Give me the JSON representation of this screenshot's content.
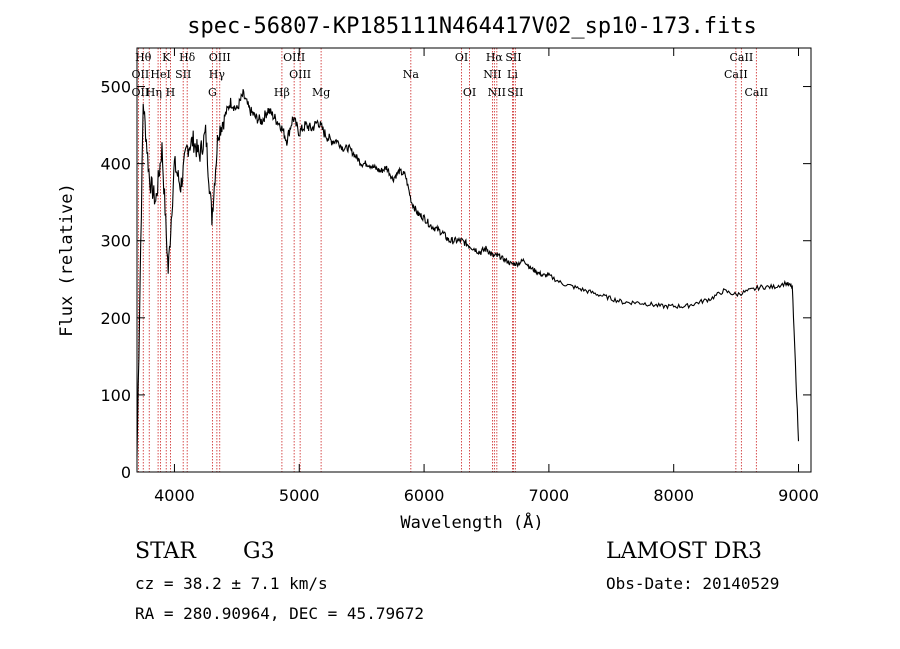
{
  "chart_data": {
    "type": "line",
    "title": "spec-56807-KP185111N464417V02_sp10-173.fits",
    "xlabel": "Wavelength (Å)",
    "ylabel": "Flux (relative)",
    "xlim": [
      3700,
      9100
    ],
    "ylim": [
      0,
      550
    ],
    "x_ticks": [
      "4000",
      "5000",
      "6000",
      "7000",
      "8000",
      "9000"
    ],
    "y_ticks": [
      "0",
      "100",
      "200",
      "300",
      "400",
      "500"
    ],
    "grid": false,
    "series": [
      {
        "x": [
          3700,
          3750,
          3800,
          3850,
          3900,
          3950,
          4000,
          4050,
          4100,
          4150,
          4200,
          4250,
          4300,
          4350,
          4400,
          4450,
          4500,
          4550,
          4600,
          4650,
          4700,
          4750,
          4800,
          4850,
          4900,
          4950,
          5000,
          5050,
          5100,
          5150,
          5200,
          5250,
          5300,
          5350,
          5400,
          5450,
          5500,
          5550,
          5600,
          5650,
          5700,
          5750,
          5800,
          5850,
          5900,
          5950,
          6000,
          6050,
          6100,
          6150,
          6200,
          6250,
          6300,
          6350,
          6400,
          6450,
          6500,
          6550,
          6600,
          6650,
          6700,
          6750,
          6800,
          6850,
          6900,
          6950,
          7000,
          7100,
          7200,
          7300,
          7400,
          7500,
          7600,
          7700,
          7800,
          7900,
          8000,
          8100,
          8200,
          8300,
          8400,
          8500,
          8600,
          8700,
          8800,
          8900,
          8950,
          9000
        ],
        "y": [
          20,
          480,
          380,
          350,
          420,
          260,
          400,
          370,
          420,
          430,
          410,
          440,
          330,
          440,
          460,
          480,
          470,
          490,
          470,
          460,
          455,
          470,
          460,
          450,
          430,
          460,
          440,
          450,
          445,
          455,
          440,
          430,
          430,
          420,
          420,
          410,
          400,
          400,
          395,
          390,
          395,
          380,
          390,
          385,
          350,
          335,
          330,
          320,
          315,
          310,
          300,
          300,
          300,
          295,
          290,
          285,
          290,
          280,
          280,
          275,
          270,
          270,
          275,
          265,
          260,
          255,
          255,
          245,
          240,
          235,
          230,
          225,
          220,
          220,
          218,
          215,
          215,
          215,
          220,
          225,
          235,
          230,
          235,
          240,
          240,
          245,
          240,
          40
        ]
      }
    ],
    "lines": [
      {
        "x": 3712,
        "labels": [
          "Hθ",
          "OII"
        ]
      },
      {
        "x": 3750,
        "labels": [
          "Hη"
        ]
      },
      {
        "x": 3798,
        "labels": [
          "Hη"
        ]
      },
      {
        "x": 3869,
        "labels": [
          "NeIII"
        ]
      },
      {
        "x": 3889,
        "labels": [
          "HeI"
        ]
      },
      {
        "x": 3934,
        "labels": [
          "K"
        ]
      },
      {
        "x": 3968,
        "labels": [
          "H"
        ]
      },
      {
        "x": 4070,
        "labels": [
          "SII"
        ]
      },
      {
        "x": 4102,
        "labels": [
          "Hδ"
        ]
      },
      {
        "x": 4304,
        "labels": [
          "G"
        ]
      },
      {
        "x": 4340,
        "labels": [
          "Hγ"
        ]
      },
      {
        "x": 4363,
        "labels": [
          "OIII"
        ]
      },
      {
        "x": 4861,
        "labels": [
          "Hβ"
        ]
      },
      {
        "x": 4959,
        "labels": [
          "OIII"
        ]
      },
      {
        "x": 5007,
        "labels": [
          "OIII"
        ]
      },
      {
        "x": 5175,
        "labels": [
          "Mg"
        ]
      },
      {
        "x": 5894,
        "labels": [
          "Na"
        ]
      },
      {
        "x": 6300,
        "labels": [
          "OI"
        ]
      },
      {
        "x": 6364,
        "labels": [
          "OI"
        ]
      },
      {
        "x": 6548,
        "labels": [
          "NII"
        ]
      },
      {
        "x": 6563,
        "labels": [
          "Hα"
        ]
      },
      {
        "x": 6583,
        "labels": [
          "NII"
        ]
      },
      {
        "x": 6708,
        "labels": [
          "Li"
        ]
      },
      {
        "x": 6716,
        "labels": [
          "SII"
        ]
      },
      {
        "x": 6731,
        "labels": [
          "SII"
        ]
      },
      {
        "x": 8498,
        "labels": [
          "CaII"
        ]
      },
      {
        "x": 8542,
        "labels": [
          "CaII"
        ]
      },
      {
        "x": 8662,
        "labels": [
          "CaII"
        ]
      }
    ],
    "line_labels": [
      {
        "text": "Hθ",
        "x": 3750,
        "row": 0
      },
      {
        "text": "K",
        "x": 3934,
        "row": 0
      },
      {
        "text": "Hδ",
        "x": 4102,
        "row": 0
      },
      {
        "text": "OIII",
        "x": 4363,
        "row": 0
      },
      {
        "text": "OIII",
        "x": 4959,
        "row": 0
      },
      {
        "text": "OI",
        "x": 6300,
        "row": 0
      },
      {
        "text": "Hα",
        "x": 6563,
        "row": 0
      },
      {
        "text": "SII",
        "x": 6716,
        "row": 0
      },
      {
        "text": "CaII",
        "x": 8542,
        "row": 0
      },
      {
        "text": "OII",
        "x": 3727,
        "row": 1
      },
      {
        "text": "HeI",
        "x": 3889,
        "row": 1
      },
      {
        "text": "SII",
        "x": 4070,
        "row": 1
      },
      {
        "text": "Hγ",
        "x": 4340,
        "row": 1
      },
      {
        "text": "OIII",
        "x": 5007,
        "row": 1
      },
      {
        "text": "Na",
        "x": 5894,
        "row": 1
      },
      {
        "text": "NII",
        "x": 6548,
        "row": 1
      },
      {
        "text": "Li",
        "x": 6708,
        "row": 1
      },
      {
        "text": "CaII",
        "x": 8498,
        "row": 1
      },
      {
        "text": "OII",
        "x": 3727,
        "row": 2
      },
      {
        "text": "Hη",
        "x": 3835,
        "row": 2
      },
      {
        "text": "H",
        "x": 3968,
        "row": 2
      },
      {
        "text": "G",
        "x": 4304,
        "row": 2
      },
      {
        "text": "Hβ",
        "x": 4861,
        "row": 2
      },
      {
        "text": "Mg",
        "x": 5175,
        "row": 2
      },
      {
        "text": "OI",
        "x": 6364,
        "row": 2
      },
      {
        "text": "NII",
        "x": 6583,
        "row": 2
      },
      {
        "text": "SII",
        "x": 6731,
        "row": 2
      },
      {
        "text": "CaII",
        "x": 8662,
        "row": 2
      }
    ]
  },
  "info": {
    "object_class": "STAR",
    "subclass": "G3",
    "survey": "LAMOST DR3",
    "cz": "cz = 38.2 ± 7.1 km/s",
    "obs_date": "Obs-Date: 20140529",
    "coords": "RA = 280.90964, DEC =  45.79672"
  },
  "colors": {
    "spectrum": "#000000",
    "line_markers": "#cc2222",
    "axes": "#000000"
  }
}
